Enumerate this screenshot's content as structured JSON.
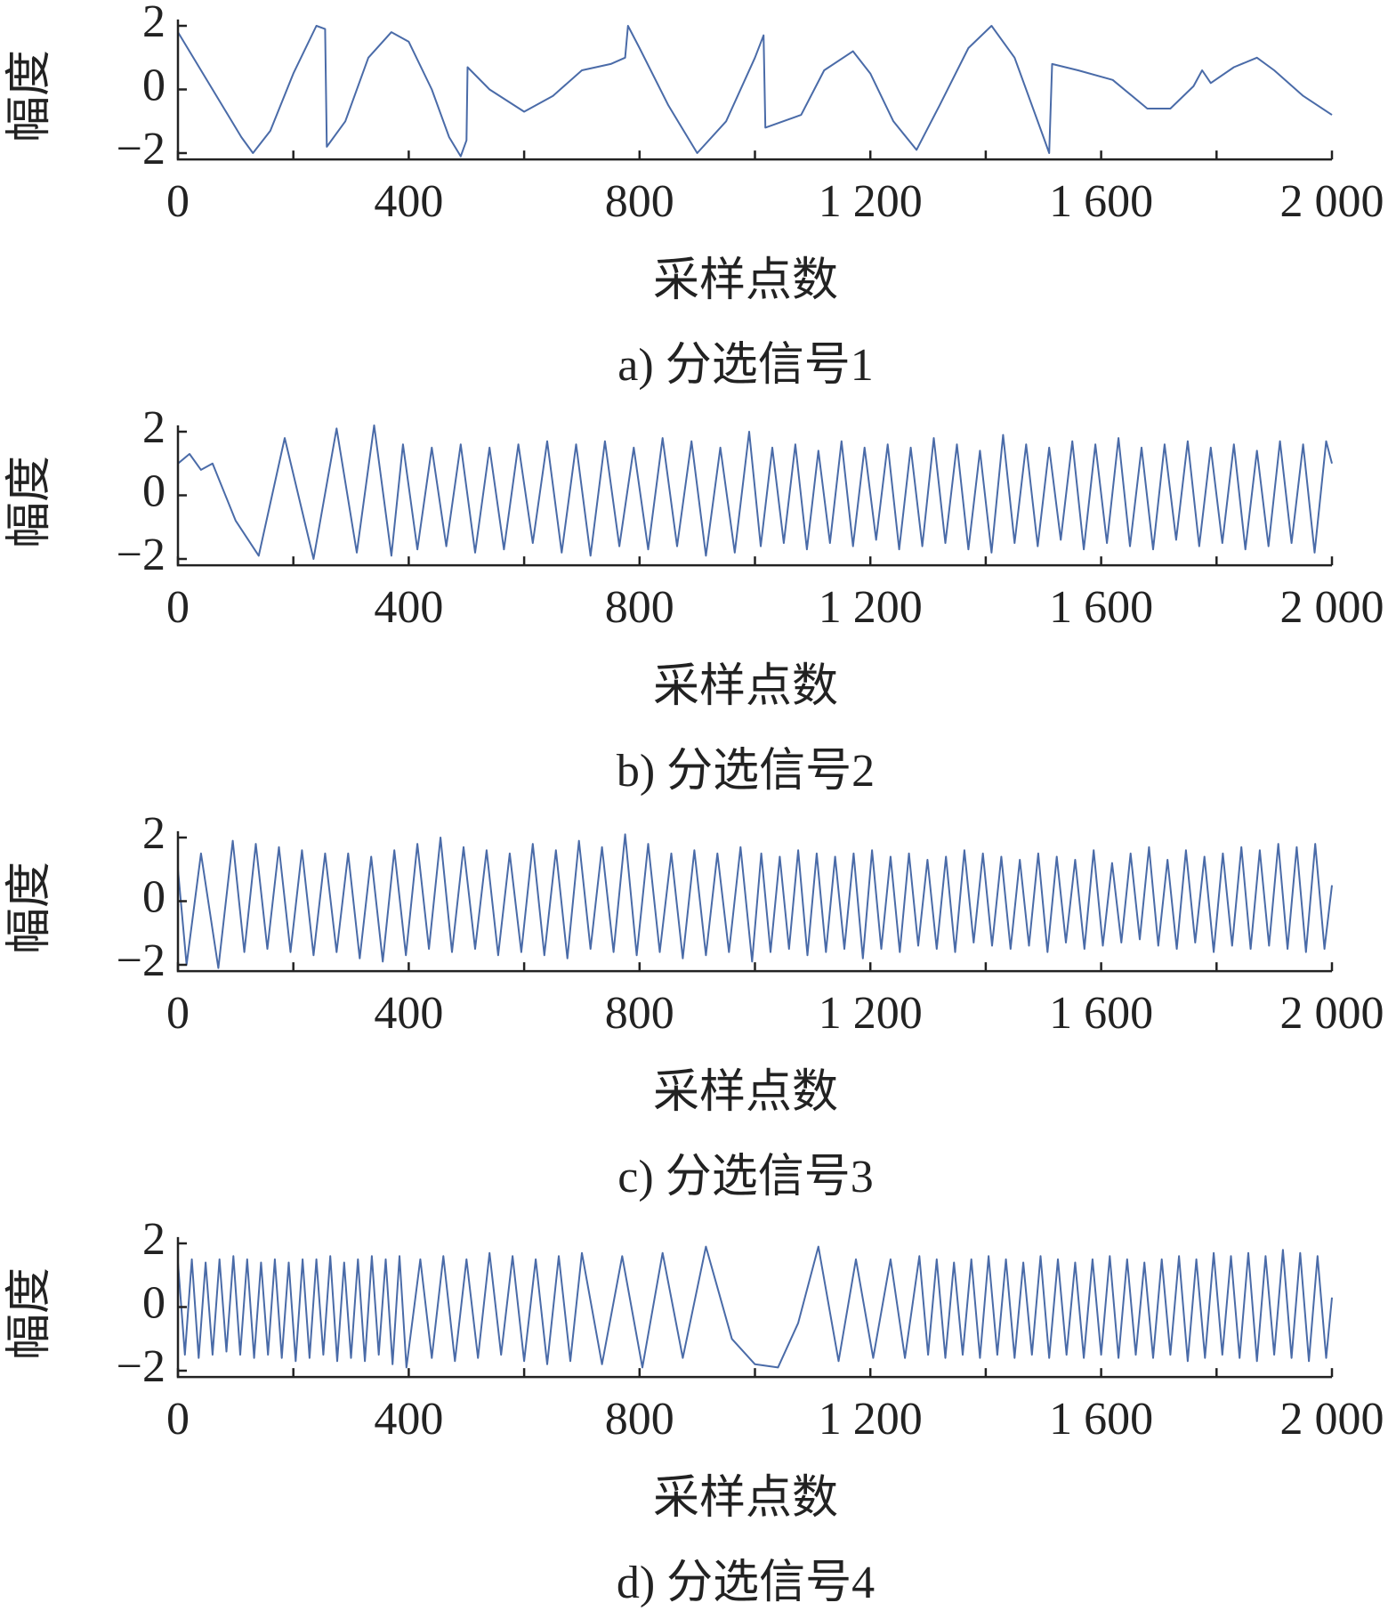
{
  "chart_data": [
    {
      "type": "line",
      "caption": "a) 分选信号1",
      "xlabel": "采样点数",
      "ylabel": "幅度",
      "color": "#4a6ba8",
      "xlim": [
        0,
        2000
      ],
      "ylim": [
        -2.2,
        2.2
      ],
      "xticks": [
        0,
        400,
        800,
        {
          "value": 1200,
          "label": "1 200"
        },
        {
          "value": 1600,
          "label": "1 600"
        },
        {
          "value": 2000,
          "label": "2 000"
        }
      ],
      "xminorticks": [
        200,
        600,
        1000,
        1400,
        1800
      ],
      "yticks": [
        {
          "value": -2,
          "label": "−2"
        },
        0,
        2
      ],
      "x": [
        0,
        20,
        60,
        110,
        130,
        160,
        200,
        240,
        255,
        258,
        290,
        330,
        370,
        400,
        440,
        470,
        490,
        500,
        502,
        540,
        600,
        650,
        700,
        750,
        775,
        780,
        800,
        850,
        900,
        950,
        1000,
        1015,
        1018,
        1080,
        1120,
        1170,
        1200,
        1240,
        1280,
        1320,
        1370,
        1410,
        1450,
        1500,
        1510,
        1515,
        1560,
        1620,
        1680,
        1720,
        1760,
        1775,
        1790,
        1830,
        1870,
        1900,
        1950,
        2000
      ],
      "values": [
        1.8,
        1.2,
        0,
        -1.5,
        -2,
        -1.3,
        0.5,
        2.0,
        1.9,
        -1.8,
        -1.0,
        1.0,
        1.8,
        1.5,
        0,
        -1.5,
        -2.1,
        -1.6,
        0.7,
        0,
        -0.7,
        -0.2,
        0.6,
        0.8,
        1.0,
        2.0,
        1.3,
        -0.5,
        -2.0,
        -1.0,
        1.0,
        1.7,
        -1.2,
        -0.8,
        0.6,
        1.2,
        0.5,
        -1.0,
        -1.9,
        -0.5,
        1.3,
        2.0,
        1.0,
        -1.5,
        -2.0,
        0.8,
        0.6,
        0.3,
        -0.6,
        -0.6,
        0.1,
        0.6,
        0.2,
        0.7,
        1.0,
        0.6,
        -0.2,
        -0.8
      ]
    },
    {
      "type": "line",
      "caption": "b) 分选信号2",
      "xlabel": "采样点数",
      "ylabel": "幅度",
      "color": "#4a6ba8",
      "xlim": [
        0,
        2000
      ],
      "ylim": [
        -2.2,
        2.2
      ],
      "xticks": [
        0,
        400,
        800,
        {
          "value": 1200,
          "label": "1 200"
        },
        {
          "value": 1600,
          "label": "1 600"
        },
        {
          "value": 2000,
          "label": "2 000"
        }
      ],
      "xminorticks": [
        200,
        600,
        1000,
        1400,
        1800
      ],
      "yticks": [
        {
          "value": -2,
          "label": "−2"
        },
        0,
        2
      ],
      "x": [
        0,
        20,
        40,
        60,
        100,
        140,
        185,
        235,
        275,
        310,
        340,
        370,
        390,
        415,
        440,
        465,
        490,
        515,
        540,
        565,
        590,
        615,
        640,
        665,
        690,
        715,
        740,
        765,
        790,
        815,
        840,
        865,
        890,
        915,
        940,
        965,
        990,
        1010,
        1030,
        1050,
        1070,
        1090,
        1110,
        1130,
        1150,
        1170,
        1190,
        1210,
        1230,
        1250,
        1270,
        1290,
        1310,
        1330,
        1350,
        1370,
        1390,
        1410,
        1430,
        1450,
        1470,
        1490,
        1510,
        1530,
        1550,
        1570,
        1590,
        1610,
        1630,
        1650,
        1670,
        1690,
        1710,
        1730,
        1750,
        1770,
        1790,
        1810,
        1830,
        1850,
        1870,
        1890,
        1910,
        1930,
        1950,
        1970,
        1990,
        2000
      ],
      "values": [
        1.0,
        1.3,
        0.8,
        1.0,
        -0.8,
        -1.9,
        1.8,
        -2.0,
        2.1,
        -1.8,
        2.2,
        -1.9,
        1.6,
        -1.7,
        1.5,
        -1.6,
        1.6,
        -1.8,
        1.5,
        -1.7,
        1.6,
        -1.5,
        1.7,
        -1.8,
        1.6,
        -1.9,
        1.7,
        -1.6,
        1.5,
        -1.7,
        1.8,
        -1.6,
        1.7,
        -1.9,
        1.5,
        -1.8,
        2.0,
        -1.6,
        1.5,
        -1.5,
        1.6,
        -1.7,
        1.4,
        -1.5,
        1.7,
        -1.6,
        1.5,
        -1.4,
        1.6,
        -1.7,
        1.5,
        -1.6,
        1.8,
        -1.5,
        1.6,
        -1.7,
        1.4,
        -1.8,
        1.9,
        -1.5,
        1.6,
        -1.6,
        1.5,
        -1.4,
        1.7,
        -1.7,
        1.6,
        -1.5,
        1.8,
        -1.6,
        1.5,
        -1.7,
        1.6,
        -1.4,
        1.7,
        -1.6,
        1.5,
        -1.5,
        1.6,
        -1.7,
        1.4,
        -1.6,
        1.7,
        -1.5,
        1.6,
        -1.8,
        1.7,
        1.0
      ]
    },
    {
      "type": "line",
      "caption": "c) 分选信号3",
      "xlabel": "采样点数",
      "ylabel": "幅度",
      "color": "#4a6ba8",
      "xlim": [
        0,
        2000
      ],
      "ylim": [
        -2.2,
        2.2
      ],
      "xticks": [
        0,
        400,
        800,
        {
          "value": 1200,
          "label": "1 200"
        },
        {
          "value": 1600,
          "label": "1 600"
        },
        {
          "value": 2000,
          "label": "2 000"
        }
      ],
      "xminorticks": [
        200,
        600,
        1000,
        1400,
        1800
      ],
      "yticks": [
        {
          "value": -2,
          "label": "−2"
        },
        0,
        2
      ],
      "x": [
        0,
        15,
        40,
        70,
        95,
        115,
        135,
        155,
        175,
        195,
        215,
        235,
        255,
        275,
        295,
        315,
        335,
        355,
        375,
        395,
        415,
        435,
        455,
        475,
        495,
        515,
        535,
        555,
        575,
        595,
        615,
        635,
        655,
        675,
        695,
        715,
        735,
        755,
        775,
        795,
        815,
        835,
        855,
        875,
        895,
        915,
        935,
        955,
        975,
        995,
        1011,
        1027,
        1043,
        1059,
        1075,
        1091,
        1107,
        1123,
        1139,
        1155,
        1171,
        1187,
        1203,
        1219,
        1235,
        1251,
        1267,
        1283,
        1299,
        1315,
        1331,
        1347,
        1363,
        1379,
        1395,
        1411,
        1427,
        1443,
        1459,
        1475,
        1491,
        1507,
        1523,
        1539,
        1555,
        1571,
        1587,
        1603,
        1619,
        1635,
        1651,
        1667,
        1683,
        1699,
        1715,
        1731,
        1747,
        1763,
        1779,
        1795,
        1811,
        1827,
        1843,
        1859,
        1875,
        1891,
        1907,
        1923,
        1939,
        1955,
        1971,
        1987,
        2000
      ],
      "values": [
        1.0,
        -2.0,
        1.5,
        -2.1,
        1.9,
        -1.6,
        1.8,
        -1.5,
        1.7,
        -1.6,
        1.6,
        -1.7,
        1.5,
        -1.6,
        1.5,
        -1.8,
        1.4,
        -1.9,
        1.6,
        -1.7,
        1.8,
        -1.5,
        2.0,
        -1.6,
        1.7,
        -1.5,
        1.6,
        -1.7,
        1.5,
        -1.6,
        1.8,
        -1.7,
        1.6,
        -1.8,
        1.9,
        -1.5,
        1.7,
        -1.6,
        2.1,
        -1.7,
        1.8,
        -1.6,
        1.5,
        -1.8,
        1.6,
        -1.7,
        1.5,
        -1.6,
        1.7,
        -1.9,
        1.5,
        -1.6,
        1.4,
        -1.5,
        1.6,
        -1.7,
        1.5,
        -1.6,
        1.4,
        -1.5,
        1.5,
        -1.8,
        1.6,
        -1.5,
        1.4,
        -1.6,
        1.5,
        -1.4,
        1.3,
        -1.5,
        1.4,
        -1.6,
        1.6,
        -1.3,
        1.5,
        -1.4,
        1.4,
        -1.5,
        1.3,
        -1.4,
        1.5,
        -1.6,
        1.4,
        -1.3,
        1.3,
        -1.5,
        1.6,
        -1.4,
        1.2,
        -1.3,
        1.5,
        -1.2,
        1.7,
        -1.4,
        1.3,
        -1.5,
        1.6,
        -1.3,
        1.4,
        -1.6,
        1.5,
        -1.4,
        1.7,
        -1.5,
        1.6,
        -1.4,
        1.8,
        -1.5,
        1.7,
        -1.6,
        1.8,
        -1.5,
        0.5
      ]
    },
    {
      "type": "line",
      "caption": "d) 分选信号4",
      "xlabel": "采样点数",
      "ylabel": "幅度",
      "color": "#4a6ba8",
      "xlim": [
        0,
        2000
      ],
      "ylim": [
        -2.2,
        2.2
      ],
      "xticks": [
        0,
        400,
        800,
        {
          "value": 1200,
          "label": "1 200"
        },
        {
          "value": 1600,
          "label": "1 600"
        },
        {
          "value": 2000,
          "label": "2 000"
        }
      ],
      "xminorticks": [
        200,
        600,
        1000,
        1400,
        1800
      ],
      "yticks": [
        {
          "value": -2,
          "label": "−2"
        },
        0,
        2
      ],
      "x": [
        0,
        12,
        24,
        36,
        48,
        60,
        72,
        84,
        96,
        108,
        120,
        132,
        144,
        156,
        168,
        180,
        192,
        204,
        216,
        228,
        240,
        252,
        264,
        276,
        288,
        300,
        312,
        324,
        336,
        348,
        360,
        372,
        384,
        396,
        420,
        440,
        460,
        480,
        500,
        520,
        540,
        560,
        580,
        600,
        620,
        640,
        660,
        680,
        700,
        735,
        770,
        805,
        840,
        875,
        915,
        960,
        1000,
        1040,
        1075,
        1110,
        1145,
        1175,
        1205,
        1235,
        1260,
        1285,
        1300,
        1315,
        1330,
        1345,
        1360,
        1375,
        1390,
        1405,
        1420,
        1435,
        1450,
        1465,
        1480,
        1495,
        1510,
        1525,
        1540,
        1555,
        1570,
        1585,
        1600,
        1615,
        1630,
        1645,
        1660,
        1675,
        1690,
        1705,
        1720,
        1735,
        1750,
        1765,
        1780,
        1795,
        1810,
        1825,
        1840,
        1855,
        1870,
        1885,
        1900,
        1915,
        1930,
        1945,
        1960,
        1975,
        1990,
        2000
      ],
      "values": [
        1.4,
        -1.5,
        1.5,
        -1.6,
        1.4,
        -1.5,
        1.5,
        -1.4,
        1.6,
        -1.5,
        1.5,
        -1.6,
        1.4,
        -1.5,
        1.5,
        -1.6,
        1.4,
        -1.7,
        1.5,
        -1.6,
        1.5,
        -1.5,
        1.6,
        -1.7,
        1.4,
        -1.6,
        1.5,
        -1.7,
        1.6,
        -1.5,
        1.5,
        -1.8,
        1.6,
        -1.9,
        1.5,
        -1.6,
        1.6,
        -1.7,
        1.5,
        -1.6,
        1.7,
        -1.5,
        1.6,
        -1.7,
        1.5,
        -1.8,
        1.6,
        -1.7,
        1.7,
        -1.8,
        1.6,
        -1.9,
        1.7,
        -1.6,
        1.9,
        -1.0,
        -1.8,
        -1.9,
        -0.5,
        1.9,
        -1.7,
        1.5,
        -1.6,
        1.5,
        -1.6,
        1.6,
        -1.5,
        1.5,
        -1.6,
        1.4,
        -1.5,
        1.5,
        -1.6,
        1.6,
        -1.5,
        1.5,
        -1.6,
        1.4,
        -1.5,
        1.6,
        -1.6,
        1.5,
        -1.5,
        1.4,
        -1.6,
        1.5,
        -1.5,
        1.6,
        -1.6,
        1.5,
        -1.5,
        1.4,
        -1.6,
        1.5,
        -1.5,
        1.6,
        -1.7,
        1.5,
        -1.6,
        1.7,
        -1.5,
        1.6,
        -1.6,
        1.7,
        -1.7,
        1.6,
        -1.5,
        1.8,
        -1.6,
        1.7,
        -1.7,
        1.6,
        -1.6,
        0.3
      ]
    }
  ]
}
